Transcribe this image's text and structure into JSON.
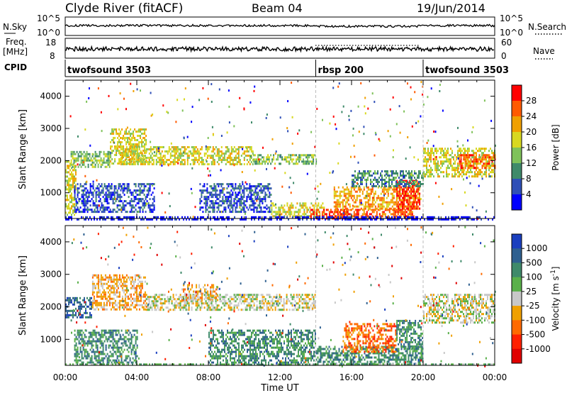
{
  "header": {
    "station": "Clyde River (fitACF)",
    "beam": "Beam 04",
    "date": "19/Jun/2014"
  },
  "nsky_panel": {
    "left_label": "N.Sky",
    "right_label": "N.Search",
    "left_ticks": [
      "10^5",
      "10^0"
    ],
    "right_ticks": [
      "10^5",
      "10^0"
    ]
  },
  "freq_panel": {
    "left_label_1": "Freq.",
    "left_label_2": "[MHz]",
    "left_ticks": [
      "18",
      "8"
    ],
    "right_label": "Nave",
    "right_ticks": [
      "60",
      "0"
    ]
  },
  "cpid": {
    "label": "CPID",
    "segments": [
      {
        "name": "twofsound 3503",
        "start_hour": 0,
        "end_hour": 14
      },
      {
        "name": "rbsp 200",
        "start_hour": 14,
        "end_hour": 20
      },
      {
        "name": "twofsound 3503",
        "start_hour": 20,
        "end_hour": 24
      }
    ]
  },
  "chart_data": [
    {
      "type": "heatmap",
      "panel": "power",
      "ylabel": "Slant Range [km]",
      "xlabel": "Time UT",
      "x_ticks": [
        "00:00",
        "04:00",
        "08:00",
        "12:00",
        "16:00",
        "20:00",
        "00:00"
      ],
      "xlim_hours": [
        0,
        24
      ],
      "ylim": [
        200,
        4500
      ],
      "y_ticks": [
        1000,
        2000,
        3000,
        4000
      ],
      "colorbar_label": "Power [dB]",
      "colorbar_ticks": [
        "4",
        "8",
        "12",
        "16",
        "20",
        "24",
        "28"
      ],
      "colorbar_colors": [
        "#0000ff",
        "#2f4fb7",
        "#3f8a6a",
        "#7fc25a",
        "#d8d820",
        "#f0a000",
        "#ff5a00",
        "#ff0000"
      ],
      "regions": [
        {
          "t0": 0.0,
          "t1": 0.6,
          "r0": 300,
          "r1": 2000,
          "level": 4
        },
        {
          "t0": 0.3,
          "t1": 2.5,
          "r0": 1800,
          "r1": 2300,
          "level": 3
        },
        {
          "t0": 2.5,
          "t1": 4.5,
          "r0": 1900,
          "r1": 3000,
          "level": 4
        },
        {
          "t0": 3.0,
          "t1": 10.5,
          "r0": 1900,
          "r1": 2450,
          "level": 4
        },
        {
          "t0": 10.5,
          "t1": 14.0,
          "r0": 1900,
          "r1": 2200,
          "level": 3
        },
        {
          "t0": 0.5,
          "t1": 5.0,
          "r0": 400,
          "r1": 1300,
          "level": 1
        },
        {
          "t0": 7.5,
          "t1": 11.5,
          "r0": 400,
          "r1": 1300,
          "level": 1
        },
        {
          "t0": 11.5,
          "t1": 14.5,
          "r0": 250,
          "r1": 700,
          "level": 4
        },
        {
          "t0": 13.7,
          "t1": 15.8,
          "r0": 220,
          "r1": 500,
          "level": 7
        },
        {
          "t0": 15.0,
          "t1": 19.5,
          "r0": 220,
          "r1": 500,
          "level": 6
        },
        {
          "t0": 15.0,
          "t1": 19.8,
          "r0": 500,
          "r1": 1200,
          "level": 5
        },
        {
          "t0": 18.5,
          "t1": 19.8,
          "r0": 500,
          "r1": 1400,
          "level": 7
        },
        {
          "t0": 16.0,
          "t1": 20.0,
          "r0": 1200,
          "r1": 1700,
          "level": 2
        },
        {
          "t0": 20.0,
          "t1": 24.0,
          "r0": 1500,
          "r1": 2400,
          "level": 4
        },
        {
          "t0": 22.0,
          "t1": 24.0,
          "r0": 1800,
          "r1": 2200,
          "level": 6
        },
        {
          "t0": 0.0,
          "t1": 24.0,
          "r0": 200,
          "r1": 270,
          "level": 0
        }
      ]
    },
    {
      "type": "heatmap",
      "panel": "velocity",
      "ylabel": "Slant Range [km]",
      "xlabel": "Time UT",
      "x_ticks": [
        "00:00",
        "04:00",
        "08:00",
        "12:00",
        "16:00",
        "20:00",
        "00:00"
      ],
      "xlim_hours": [
        0,
        24
      ],
      "ylim": [
        200,
        4500
      ],
      "y_ticks": [
        1000,
        2000,
        3000,
        4000
      ],
      "colorbar_label": "Velocity [m s^-1]",
      "colorbar_ticks": [
        "1000",
        "500",
        "100",
        "25",
        "-25",
        "-100",
        "-500",
        "-1000"
      ],
      "colorbar_colors": [
        "#1a3fbf",
        "#2f6090",
        "#3f8a6a",
        "#5ab04a",
        "#c8c8c8",
        "#f0a000",
        "#ff6a00",
        "#ff2000",
        "#e00000"
      ],
      "regions": [
        {
          "t0": 0.0,
          "t1": 1.5,
          "r0": 1700,
          "r1": 2300,
          "level": 1
        },
        {
          "t0": 1.5,
          "t1": 4.5,
          "r0": 1900,
          "r1": 3000,
          "level": 5
        },
        {
          "t0": 4.5,
          "t1": 14.0,
          "r0": 1900,
          "r1": 2400,
          "level": 4
        },
        {
          "t0": 6.5,
          "t1": 8.5,
          "r0": 2200,
          "r1": 2700,
          "level": 5
        },
        {
          "t0": 0.5,
          "t1": 4.0,
          "r0": 300,
          "r1": 1300,
          "level": 2
        },
        {
          "t0": 8.0,
          "t1": 14.0,
          "r0": 250,
          "r1": 1300,
          "level": 2
        },
        {
          "t0": 14.0,
          "t1": 20.0,
          "r0": 250,
          "r1": 800,
          "level": 2
        },
        {
          "t0": 15.5,
          "t1": 18.5,
          "r0": 600,
          "r1": 1500,
          "level": 6
        },
        {
          "t0": 18.5,
          "t1": 20.0,
          "r0": 700,
          "r1": 1600,
          "level": 2
        },
        {
          "t0": 20.0,
          "t1": 24.0,
          "r0": 1500,
          "r1": 2400,
          "level": 4
        },
        {
          "t0": 0.0,
          "t1": 24.0,
          "r0": 200,
          "r1": 260,
          "level": 3
        }
      ]
    }
  ],
  "footer": {
    "xlabel": "Time UT"
  }
}
